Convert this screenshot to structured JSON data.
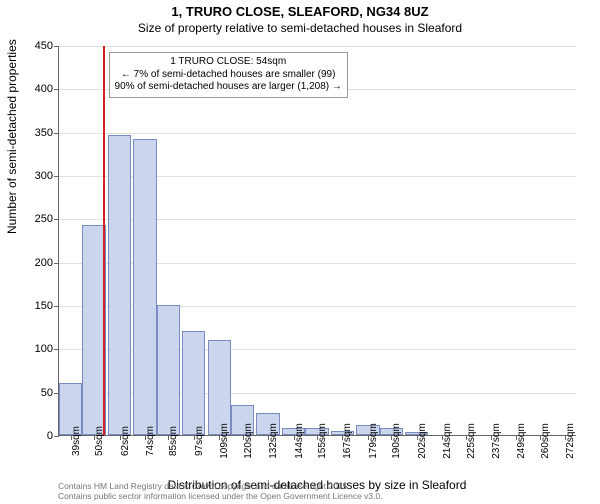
{
  "title_line1": "1, TRURO CLOSE, SLEAFORD, NG34 8UZ",
  "title_line2": "Size of property relative to semi-detached houses in Sleaford",
  "chart": {
    "type": "histogram",
    "y_label": "Number of semi-detached properties",
    "x_label": "Distribution of semi-detached houses by size in Sleaford",
    "ylim": [
      0,
      450
    ],
    "ytick_step": 50,
    "background_color": "#ffffff",
    "grid_color": "#e0e0e0",
    "axis_color": "#666666",
    "bar_fill": "#cbd6ee",
    "bar_border": "#7a8bbd",
    "marker_line_color": "#d02020",
    "marker_x_value": 54,
    "x_ticks": [
      39,
      50,
      62,
      74,
      85,
      97,
      109,
      120,
      132,
      144,
      155,
      167,
      179,
      190,
      202,
      214,
      225,
      237,
      249,
      260,
      272
    ],
    "x_tick_suffix": "sqm",
    "bars": [
      {
        "x": 39,
        "value": 60
      },
      {
        "x": 50,
        "value": 242
      },
      {
        "x": 62,
        "value": 346
      },
      {
        "x": 74,
        "value": 342
      },
      {
        "x": 85,
        "value": 150
      },
      {
        "x": 97,
        "value": 120
      },
      {
        "x": 109,
        "value": 110
      },
      {
        "x": 120,
        "value": 35
      },
      {
        "x": 132,
        "value": 25
      },
      {
        "x": 144,
        "value": 8
      },
      {
        "x": 155,
        "value": 8
      },
      {
        "x": 167,
        "value": 5
      },
      {
        "x": 179,
        "value": 12
      },
      {
        "x": 190,
        "value": 8
      },
      {
        "x": 202,
        "value": 4
      },
      {
        "x": 214,
        "value": 0
      },
      {
        "x": 225,
        "value": 0
      },
      {
        "x": 237,
        "value": 0
      },
      {
        "x": 249,
        "value": 0
      },
      {
        "x": 260,
        "value": 0
      },
      {
        "x": 272,
        "value": 0
      }
    ],
    "annot": {
      "line1": "1 TRURO CLOSE: 54sqm",
      "line2": "← 7% of semi-detached houses are smaller (99)",
      "line3": "90% of semi-detached houses are larger (1,208) →"
    },
    "title_fontsize": 13,
    "label_fontsize": 12,
    "tick_fontsize": 11
  },
  "footer": {
    "line1": "Contains HM Land Registry data © Crown copyright and database right 2025.",
    "line2": "Contains public sector information licensed under the Open Government Licence v3.0."
  }
}
